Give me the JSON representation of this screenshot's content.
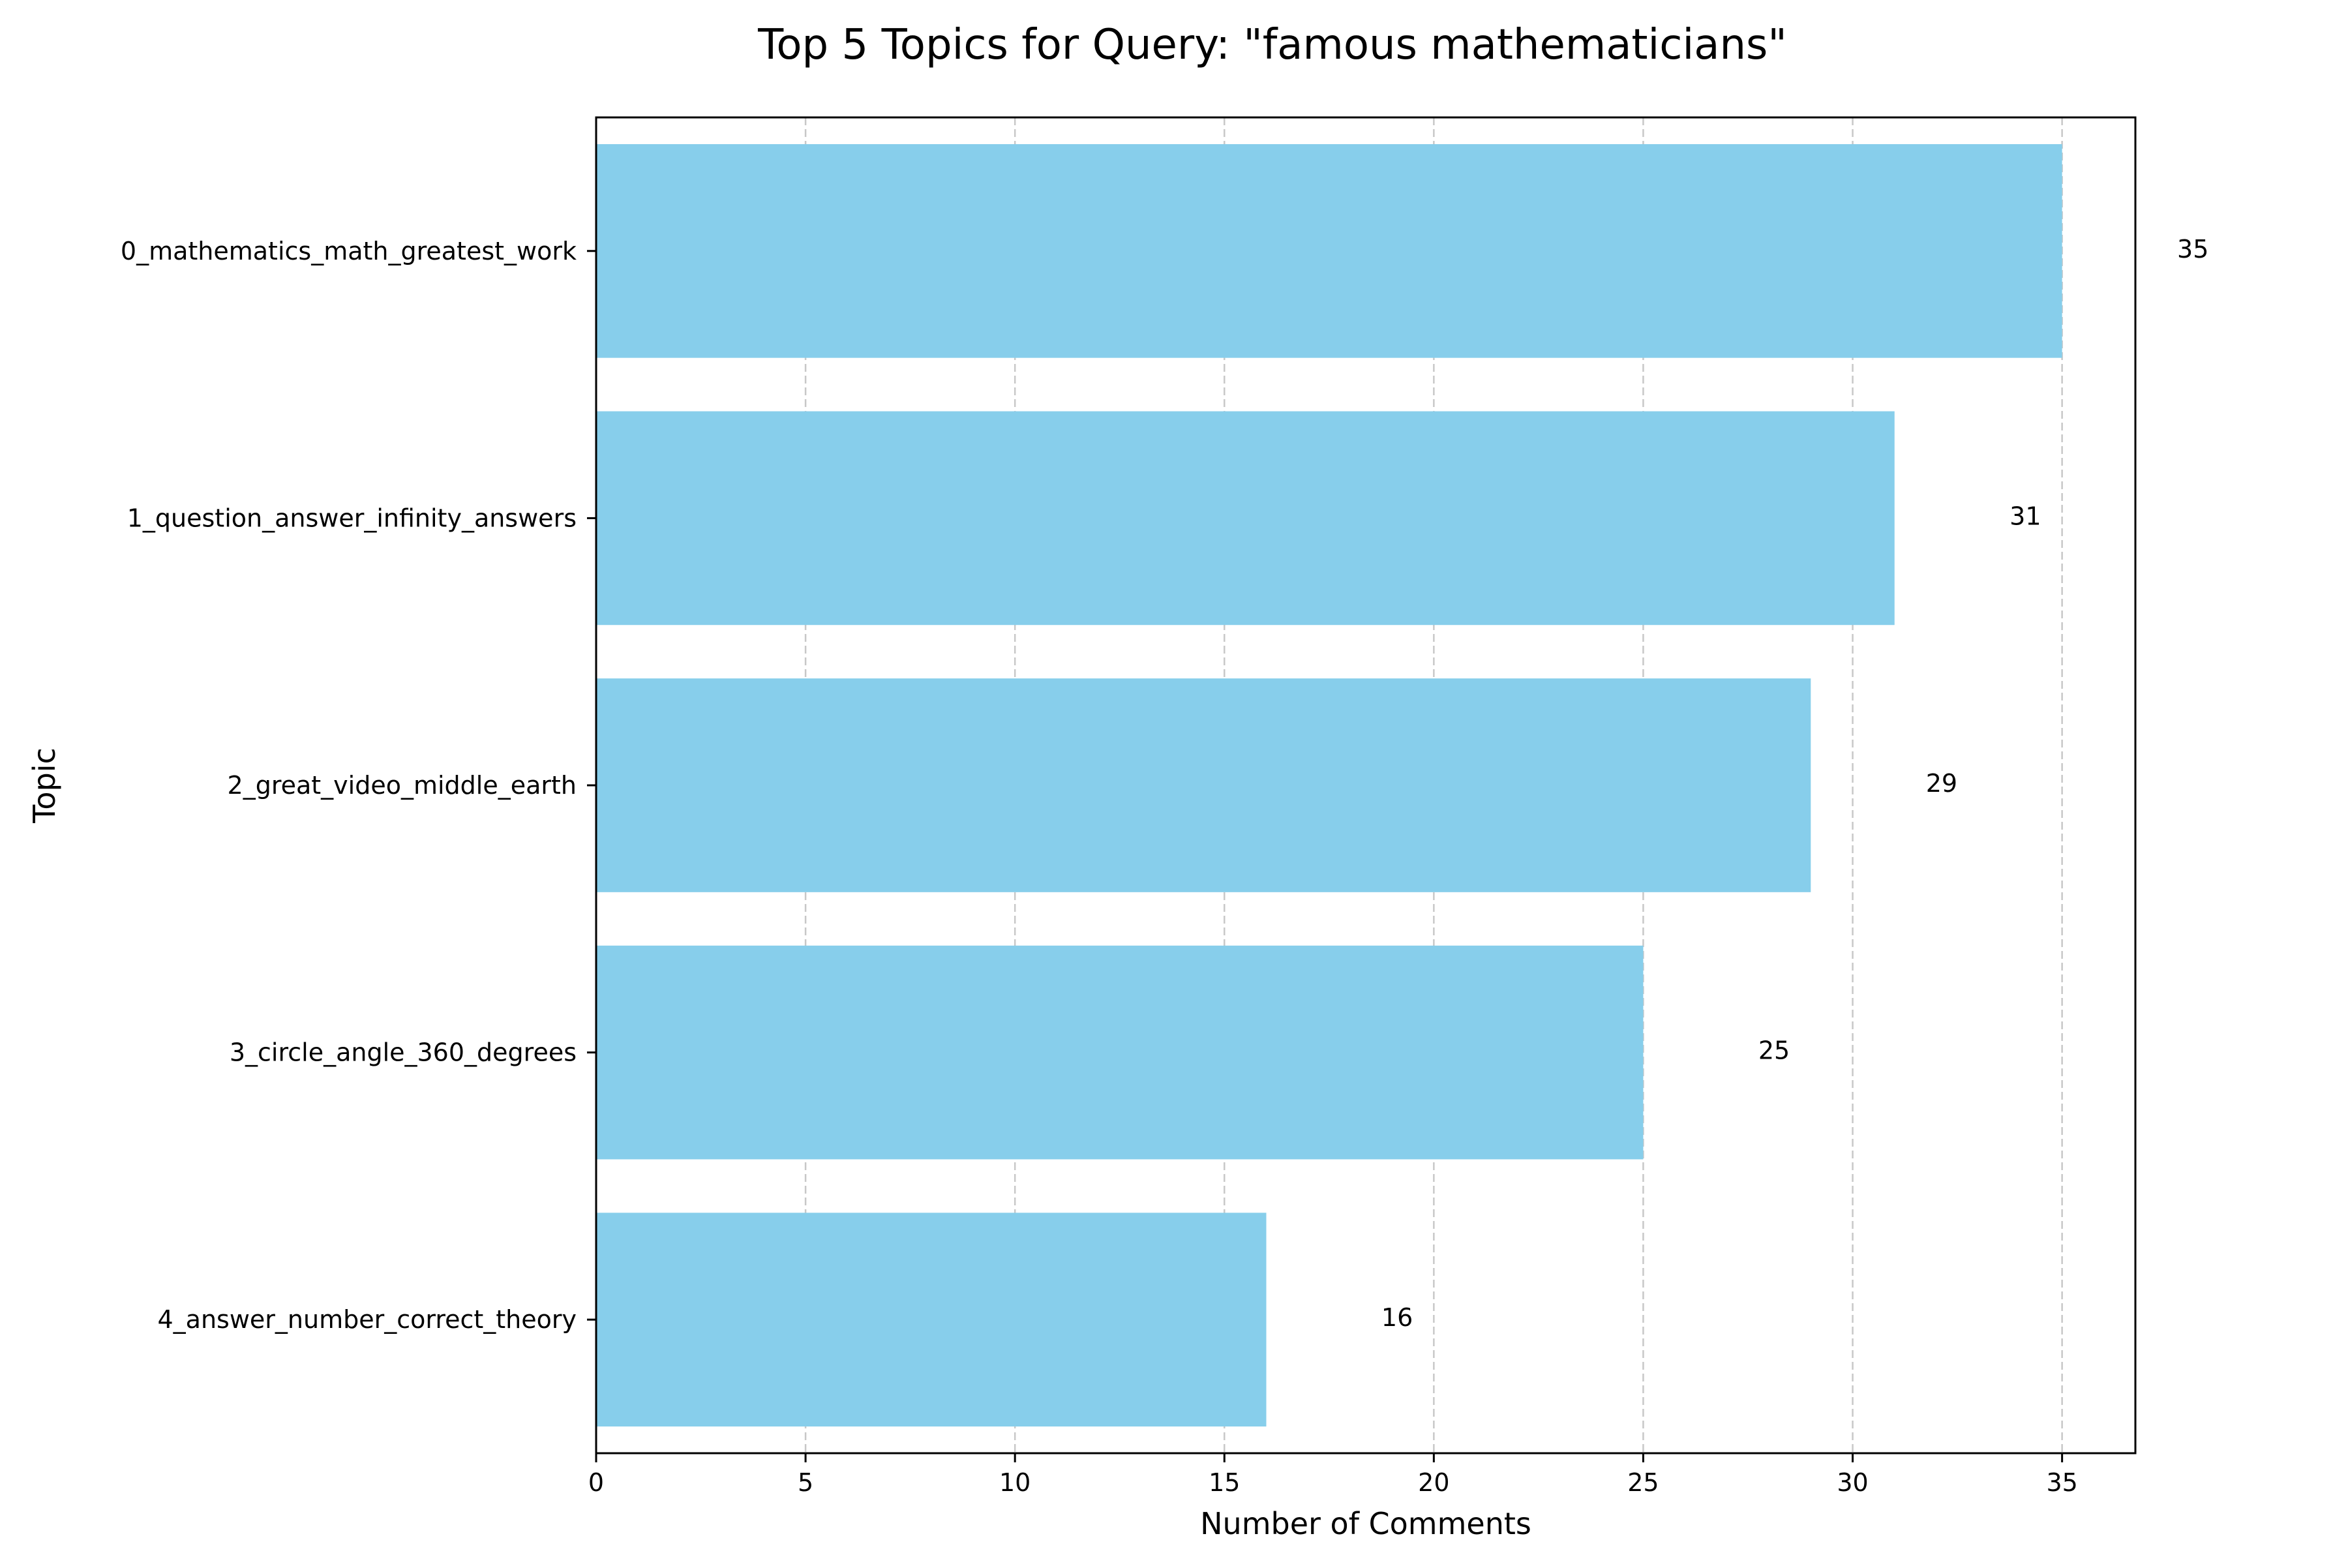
{
  "chart_data": {
    "type": "bar",
    "orientation": "horizontal",
    "title": "Top 5 Topics for Query: \"famous mathematicians\"",
    "xlabel": "Number of Comments",
    "ylabel": "Topic",
    "categories": [
      "0_mathematics_math_greatest_work",
      "1_question_answer_infinity_answers",
      "2_great_video_middle_earth",
      "3_circle_angle_360_degrees",
      "4_answer_number_correct_theory"
    ],
    "values": [
      35,
      31,
      29,
      25,
      16
    ],
    "data_labels": [
      "35",
      "31",
      "29",
      "25",
      "16"
    ],
    "xlim": [
      0,
      36.75
    ],
    "xticks": [
      0,
      5,
      10,
      15,
      20,
      25,
      30,
      35
    ],
    "xtick_labels": [
      "0",
      "5",
      "10",
      "15",
      "20",
      "25",
      "30",
      "35"
    ],
    "grid": "x-axis dashed",
    "legend": "none",
    "bar_color": "#87ceeb",
    "grid_color": "#c8c8c8"
  }
}
